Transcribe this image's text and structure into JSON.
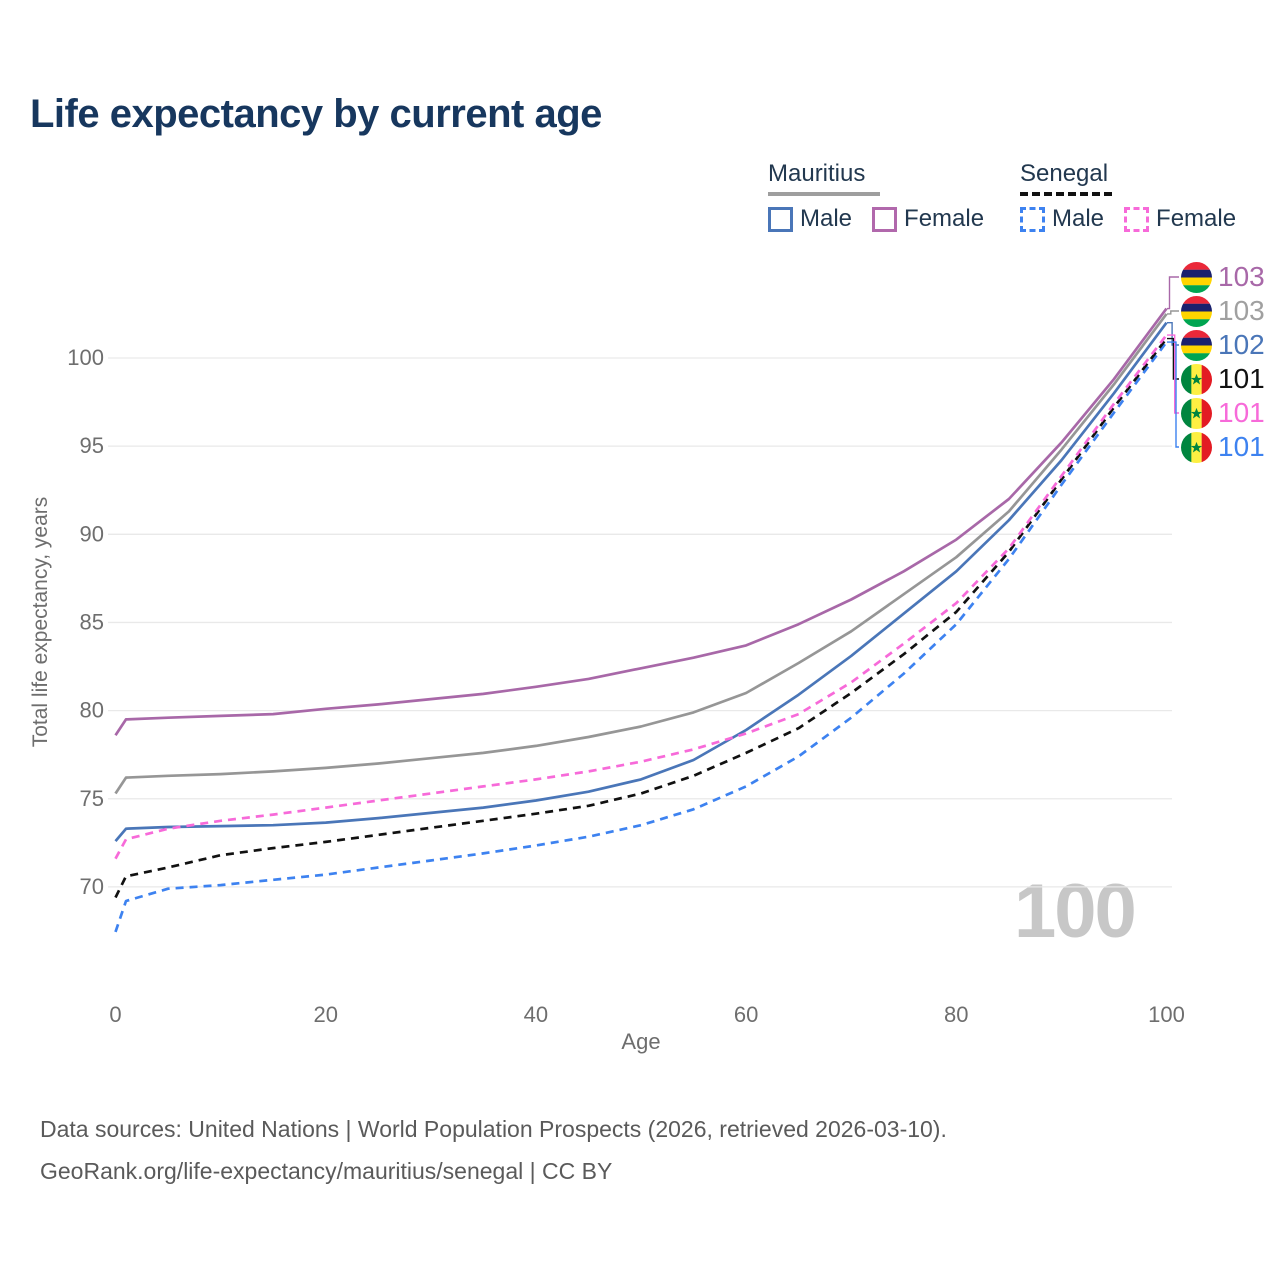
{
  "title": "Life expectancy by current age",
  "watermark": "100",
  "legend": {
    "groups": [
      {
        "country": "Mauritius",
        "line_style": "solid",
        "underline_color": "#9e9e9e",
        "items": [
          {
            "label": "Male",
            "color": "#4a76b8"
          },
          {
            "label": "Female",
            "color": "#b168ac"
          }
        ]
      },
      {
        "country": "Senegal",
        "line_style": "dashed",
        "underline_color": "#111111",
        "items": [
          {
            "label": "Male",
            "color": "#3d82f0"
          },
          {
            "label": "Female",
            "color": "#f76ad9"
          }
        ]
      }
    ]
  },
  "footer": {
    "line1": "Data sources: United Nations | World Population Prospects (2026, retrieved 2026-03-10).",
    "line2": "GeoRank.org/life-expectancy/mauritius/senegal | CC BY"
  },
  "colors": {
    "title": "#17375e",
    "axis_text": "#6e6e6e",
    "gridline": "#e9e9e9",
    "watermark": "#c7c7c7",
    "flag_mauritius": [
      "#EA2839",
      "#1A206D",
      "#FFD500",
      "#00A551"
    ],
    "flag_senegal": [
      "#00853F",
      "#FDEF42",
      "#E31B23"
    ],
    "flag_senegal_star": "#00853F"
  },
  "chart_data": {
    "type": "line",
    "title": "Life expectancy by current age",
    "xlabel": "Age",
    "ylabel": "Total life expectancy, years",
    "xlim": [
      0,
      100
    ],
    "ylim": [
      66.5,
      104
    ],
    "x_ticks": [
      0,
      20,
      40,
      60,
      80,
      100
    ],
    "y_ticks": [
      70,
      75,
      80,
      85,
      90,
      95,
      100
    ],
    "grid": "horizontal-only",
    "legend_position": "top-right",
    "x": [
      0,
      1,
      5,
      10,
      15,
      20,
      25,
      30,
      35,
      40,
      45,
      50,
      55,
      60,
      65,
      70,
      75,
      80,
      85,
      90,
      95,
      100
    ],
    "series": [
      {
        "name": "Mauritius Female",
        "country": "Mauritius",
        "sex": "Female",
        "color": "#a868a8",
        "dash": "solid",
        "flag": "mauritius",
        "end_label": "103",
        "end_label_color": "#a868a8",
        "values": [
          78.6,
          79.5,
          79.6,
          79.7,
          79.8,
          80.1,
          80.35,
          80.65,
          80.95,
          81.35,
          81.8,
          82.4,
          83.0,
          83.7,
          84.9,
          86.3,
          87.9,
          89.7,
          92.0,
          95.2,
          98.8,
          102.8
        ]
      },
      {
        "name": "Mauritius both sexes",
        "country": "Mauritius",
        "sex": "Both",
        "color": "#969696",
        "dash": "solid",
        "flag": "mauritius",
        "end_label": "103",
        "end_label_color": "#a0a0a0",
        "values": [
          75.3,
          76.2,
          76.3,
          76.4,
          76.55,
          76.75,
          77.0,
          77.3,
          77.6,
          78.0,
          78.5,
          79.1,
          79.9,
          81.0,
          82.7,
          84.5,
          86.6,
          88.7,
          91.3,
          94.8,
          98.5,
          102.5
        ]
      },
      {
        "name": "Mauritius Male",
        "country": "Mauritius",
        "sex": "Male",
        "color": "#4a76b8",
        "dash": "solid",
        "flag": "mauritius",
        "end_label": "102",
        "end_label_color": "#4a76b8",
        "values": [
          72.6,
          73.3,
          73.4,
          73.45,
          73.5,
          73.65,
          73.9,
          74.2,
          74.5,
          74.9,
          75.4,
          76.1,
          77.2,
          78.9,
          80.9,
          83.1,
          85.5,
          87.9,
          90.8,
          94.2,
          98.0,
          102.0
        ]
      },
      {
        "name": "Senegal both sexes",
        "country": "Senegal",
        "sex": "Both",
        "color": "#111111",
        "dash": "dashed",
        "flag": "senegal",
        "end_label": "101",
        "end_label_color": "#111111",
        "values": [
          69.4,
          70.6,
          71.1,
          71.8,
          72.2,
          72.55,
          72.95,
          73.35,
          73.75,
          74.15,
          74.6,
          75.3,
          76.3,
          77.6,
          79.0,
          81.0,
          83.2,
          85.6,
          89.0,
          93.1,
          97.2,
          101.1
        ]
      },
      {
        "name": "Senegal Female",
        "country": "Senegal",
        "sex": "Female",
        "color": "#f76ad9",
        "dash": "dashed",
        "flag": "senegal",
        "end_label": "101",
        "end_label_color": "#f76ad9",
        "values": [
          71.6,
          72.7,
          73.3,
          73.75,
          74.1,
          74.5,
          74.9,
          75.3,
          75.7,
          76.1,
          76.55,
          77.1,
          77.8,
          78.7,
          79.8,
          81.6,
          83.8,
          86.1,
          89.2,
          93.3,
          97.4,
          101.3
        ]
      },
      {
        "name": "Senegal Male",
        "country": "Senegal",
        "sex": "Male",
        "color": "#3d82f0",
        "dash": "dashed",
        "flag": "senegal",
        "end_label": "101",
        "end_label_color": "#3d82f0",
        "values": [
          67.45,
          69.2,
          69.9,
          70.1,
          70.4,
          70.7,
          71.1,
          71.5,
          71.9,
          72.35,
          72.85,
          73.5,
          74.4,
          75.7,
          77.4,
          79.6,
          82.1,
          84.9,
          88.6,
          92.8,
          96.9,
          100.9
        ]
      }
    ]
  }
}
